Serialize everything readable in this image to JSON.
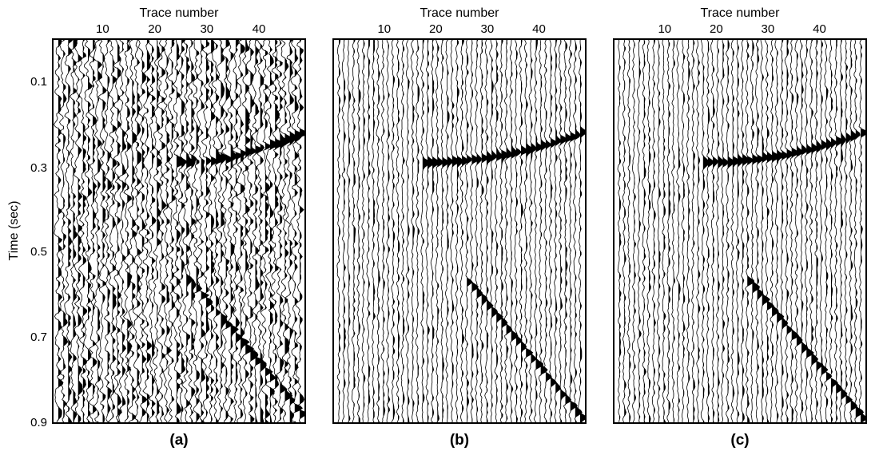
{
  "chart_data": [
    {
      "type": "seismic-wiggle",
      "panel_label": "(a)",
      "xlabel": "Trace number",
      "ylabel": "Time (sec)",
      "x_ticks": [
        "10",
        "20",
        "30",
        "40"
      ],
      "y_ticks": [
        "0.1",
        "0.3",
        "0.5",
        "0.7",
        "0.9"
      ],
      "x_range": [
        1,
        50
      ],
      "y_range": [
        0,
        0.9
      ],
      "traces": 50,
      "noise": "high",
      "events": [
        {
          "shape": "curved",
          "trace_start": 25,
          "trace_end": 50,
          "t_start": 0.29,
          "t_end": 0.22
        },
        {
          "shape": "linear",
          "trace_start": 27,
          "trace_end": 50,
          "t_start": 0.56,
          "t_end": 0.88
        }
      ]
    },
    {
      "type": "seismic-wiggle",
      "panel_label": "(b)",
      "xlabel": "Trace number",
      "ylabel": "",
      "x_ticks": [
        "10",
        "20",
        "30",
        "40"
      ],
      "y_ticks": [],
      "x_range": [
        1,
        50
      ],
      "y_range": [
        0,
        0.9
      ],
      "traces": 50,
      "noise": "low",
      "events": [
        {
          "shape": "curved",
          "trace_start": 18,
          "trace_end": 50,
          "t_start": 0.29,
          "t_end": 0.22
        },
        {
          "shape": "linear",
          "trace_start": 27,
          "trace_end": 50,
          "t_start": 0.57,
          "t_end": 0.89
        }
      ]
    },
    {
      "type": "seismic-wiggle",
      "panel_label": "(c)",
      "xlabel": "Trace number",
      "ylabel": "",
      "x_ticks": [
        "10",
        "20",
        "30",
        "40"
      ],
      "y_ticks": [],
      "x_range": [
        1,
        50
      ],
      "y_range": [
        0,
        0.9
      ],
      "traces": 50,
      "noise": "low",
      "events": [
        {
          "shape": "curved",
          "trace_start": 18,
          "trace_end": 50,
          "t_start": 0.29,
          "t_end": 0.22
        },
        {
          "shape": "linear",
          "trace_start": 27,
          "trace_end": 50,
          "t_start": 0.57,
          "t_end": 0.89
        }
      ]
    }
  ]
}
